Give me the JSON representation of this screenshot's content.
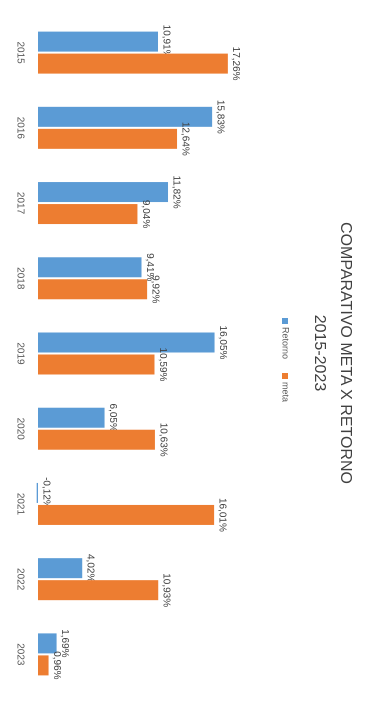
{
  "chart_data": {
    "type": "bar",
    "title": "COMPARATIVO META X RETORNO",
    "subtitle": "2015-2023",
    "categories": [
      "2015",
      "2016",
      "2017",
      "2018",
      "2019",
      "2020",
      "2021",
      "2022",
      "2023"
    ],
    "series": [
      {
        "name": "Retorno",
        "color": "#5b9bd5",
        "values": [
          10.91,
          15.83,
          11.82,
          9.41,
          16.05,
          6.05,
          -0.12,
          4.02,
          1.69
        ],
        "value_labels": [
          "10,91%",
          "15,83%",
          "11,82%",
          "9,41%",
          "16,05%",
          "6,05%",
          "-0,12%",
          "4,02%",
          "1,69%"
        ]
      },
      {
        "name": "meta",
        "color": "#ed7d31",
        "values": [
          17.26,
          12.64,
          9.04,
          9.92,
          10.59,
          10.63,
          16.01,
          10.93,
          0.96
        ],
        "value_labels": [
          "17,26%",
          "12,64%",
          "9,04%",
          "9,92%",
          "10,59%",
          "10,63%",
          "16,01%",
          "10,93%",
          "0,96%"
        ]
      }
    ],
    "legend": "top"
  }
}
